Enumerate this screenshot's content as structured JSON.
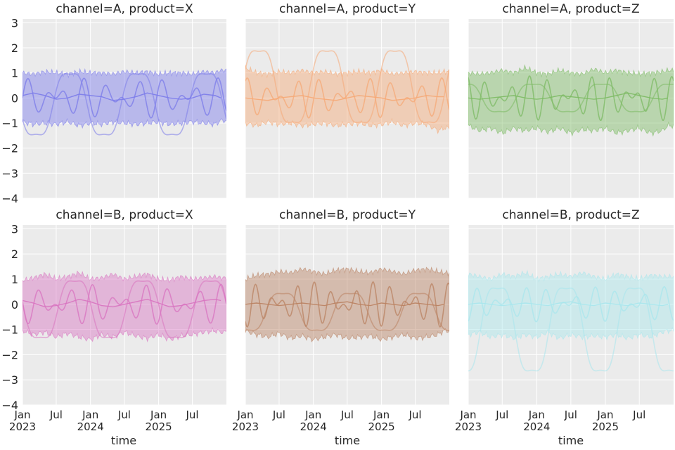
{
  "figure": {
    "xlabel": "time",
    "x_ticks": [
      {
        "date": "2023-01-01",
        "line1": "Jan",
        "line2": "2023"
      },
      {
        "date": "2023-07-01",
        "line1": "Jul",
        "line2": ""
      },
      {
        "date": "2024-01-01",
        "line1": "Jan",
        "line2": "2024"
      },
      {
        "date": "2024-07-01",
        "line1": "Jul",
        "line2": ""
      },
      {
        "date": "2025-01-01",
        "line1": "Jan",
        "line2": "2025"
      },
      {
        "date": "2025-07-01",
        "line1": "Jul",
        "line2": ""
      }
    ],
    "y_ticks": [
      3,
      2,
      1,
      0,
      -1,
      -2,
      -3,
      -4
    ],
    "x_range": [
      "2023-01-01",
      "2025-12-31"
    ],
    "y_range": [
      -4,
      3.15
    ],
    "grid": true,
    "background": "#ebebeb"
  },
  "chart_data": [
    {
      "type": "area",
      "title": "channel=A, product=X",
      "color": "#7b7bea",
      "x": [
        "2023-01",
        "2023-03",
        "2023-05",
        "2023-07",
        "2023-09",
        "2023-11",
        "2024-01",
        "2024-03",
        "2024-05",
        "2024-07",
        "2024-09",
        "2024-11",
        "2025-01",
        "2025-03",
        "2025-05",
        "2025-07",
        "2025-09",
        "2025-11",
        "2025-12"
      ],
      "mean": [
        0.1,
        0.2,
        0.1,
        -0.05,
        0.0,
        0.15,
        0.1,
        0.05,
        -0.1,
        -0.05,
        0.05,
        0.2,
        0.1,
        0.0,
        -0.05,
        0.0,
        0.15,
        0.1,
        0.0
      ],
      "band_upper": [
        1.0,
        0.95,
        1.05,
        1.0,
        0.95,
        1.05,
        1.0,
        1.0,
        0.95,
        1.05,
        1.0,
        1.05,
        0.95,
        1.0,
        1.0,
        0.95,
        1.05,
        1.0,
        1.1
      ],
      "band_lower": [
        -0.95,
        -1.05,
        -1.0,
        -1.05,
        -0.95,
        -1.1,
        -1.0,
        -1.05,
        -0.95,
        -1.0,
        -1.05,
        -1.0,
        -0.95,
        -1.05,
        -1.0,
        -0.95,
        -1.0,
        -1.05,
        -0.9
      ],
      "seasonal": [
        {
          "amp": 2.0,
          "offset": -0.25,
          "period_days": 365,
          "phase": 0.55
        }
      ],
      "wiggle": {
        "amp": 0.8,
        "period_days": 120
      }
    },
    {
      "type": "area",
      "title": "channel=A, product=Y",
      "color": "#f5a875",
      "x": [
        "2023-01",
        "2023-03",
        "2023-05",
        "2023-07",
        "2023-09",
        "2023-11",
        "2024-01",
        "2024-03",
        "2024-05",
        "2024-07",
        "2024-09",
        "2024-11",
        "2025-01",
        "2025-03",
        "2025-05",
        "2025-07",
        "2025-09",
        "2025-11",
        "2025-12"
      ],
      "mean": [
        0.0,
        -0.05,
        -0.1,
        0.0,
        0.05,
        0.1,
        0.0,
        -0.05,
        -0.1,
        0.0,
        0.1,
        0.05,
        0.0,
        -0.1,
        -0.05,
        0.0,
        0.1,
        0.05,
        0.05
      ],
      "band_upper": [
        1.2,
        1.0,
        0.95,
        1.05,
        1.0,
        1.1,
        1.0,
        1.05,
        0.95,
        1.0,
        1.05,
        1.0,
        1.1,
        0.95,
        1.0,
        1.05,
        1.0,
        1.0,
        1.05
      ],
      "band_lower": [
        -1.0,
        -1.1,
        -0.95,
        -1.05,
        -1.0,
        -1.1,
        -1.05,
        -1.0,
        -1.1,
        -1.05,
        -1.0,
        -1.1,
        -1.05,
        -0.95,
        -1.1,
        -1.0,
        -1.05,
        -1.3,
        -1.2
      ],
      "seasonal": [
        {
          "amp": 2.35,
          "offset": 0.45,
          "period_days": 365,
          "phase": 0.05
        }
      ],
      "wiggle": {
        "amp": 0.8,
        "period_days": 110
      }
    },
    {
      "type": "area",
      "title": "channel=A, product=Z",
      "color": "#7cba63",
      "x": [
        "2023-01",
        "2023-03",
        "2023-05",
        "2023-07",
        "2023-09",
        "2023-11",
        "2024-01",
        "2024-03",
        "2024-05",
        "2024-07",
        "2024-09",
        "2024-11",
        "2025-01",
        "2025-03",
        "2025-05",
        "2025-07",
        "2025-09",
        "2025-11",
        "2025-12"
      ],
      "mean": [
        0.0,
        -0.05,
        0.0,
        0.05,
        0.1,
        0.0,
        -0.05,
        0.0,
        0.1,
        0.05,
        0.0,
        -0.05,
        0.0,
        0.1,
        0.2,
        0.1,
        0.0,
        -0.05,
        0.0
      ],
      "band_upper": [
        1.0,
        0.95,
        1.0,
        1.1,
        1.0,
        1.2,
        1.0,
        0.95,
        1.1,
        1.0,
        0.95,
        1.15,
        1.0,
        1.1,
        1.0,
        0.95,
        1.0,
        1.05,
        1.1
      ],
      "band_lower": [
        -1.1,
        -1.3,
        -1.2,
        -1.4,
        -1.2,
        -1.3,
        -1.2,
        -1.35,
        -1.2,
        -1.4,
        -1.25,
        -1.3,
        -1.2,
        -1.4,
        -1.3,
        -1.2,
        -1.4,
        -1.3,
        -1.1
      ],
      "seasonal": [
        {
          "amp": 0.9,
          "offset": 0.0,
          "period_days": 365,
          "phase": 0.3
        }
      ],
      "wiggle": {
        "amp": 0.9,
        "period_days": 95
      }
    },
    {
      "type": "area",
      "title": "channel=B, product=X",
      "color": "#d873c0",
      "x": [
        "2023-01",
        "2023-03",
        "2023-05",
        "2023-07",
        "2023-09",
        "2023-11",
        "2024-01",
        "2024-03",
        "2024-05",
        "2024-07",
        "2024-09",
        "2024-11",
        "2025-01",
        "2025-03",
        "2025-05",
        "2025-07",
        "2025-09",
        "2025-11",
        "2025-12"
      ],
      "mean": [
        0.15,
        0.05,
        -0.1,
        -0.05,
        0.05,
        0.2,
        0.1,
        -0.05,
        -0.1,
        0.0,
        0.1,
        0.2,
        0.05,
        -0.1,
        -0.05,
        0.05,
        0.15,
        0.2,
        0.15
      ],
      "band_upper": [
        0.95,
        1.05,
        1.2,
        1.0,
        1.1,
        1.25,
        1.0,
        1.05,
        1.2,
        1.0,
        1.1,
        1.2,
        1.0,
        0.95,
        1.1,
        1.0,
        1.05,
        1.1,
        1.05
      ],
      "band_lower": [
        -1.05,
        -1.2,
        -1.1,
        -1.3,
        -1.15,
        -1.3,
        -1.4,
        -1.2,
        -1.3,
        -1.1,
        -1.25,
        -1.35,
        -1.2,
        -1.4,
        -1.25,
        -1.2,
        -1.1,
        -1.05,
        -1.1
      ],
      "seasonal": [
        {
          "amp": 1.85,
          "offset": -0.2,
          "period_days": 365,
          "phase": 0.48
        }
      ],
      "wiggle": {
        "amp": 0.8,
        "period_days": 115
      }
    },
    {
      "type": "area",
      "title": "channel=B, product=Y",
      "color": "#b98161",
      "x": [
        "2023-01",
        "2023-03",
        "2023-05",
        "2023-07",
        "2023-09",
        "2023-11",
        "2024-01",
        "2024-03",
        "2024-05",
        "2024-07",
        "2024-09",
        "2024-11",
        "2025-01",
        "2025-03",
        "2025-05",
        "2025-07",
        "2025-09",
        "2025-11",
        "2025-12"
      ],
      "mean": [
        0.0,
        0.05,
        0.0,
        -0.05,
        0.0,
        0.05,
        0.0,
        -0.05,
        0.05,
        0.1,
        0.0,
        -0.05,
        0.05,
        0.0,
        -0.05,
        0.05,
        0.0,
        -0.05,
        0.0
      ],
      "band_upper": [
        1.0,
        1.15,
        1.2,
        1.3,
        1.25,
        1.4,
        1.3,
        1.2,
        1.35,
        1.4,
        1.3,
        1.25,
        1.4,
        1.3,
        1.2,
        1.35,
        1.4,
        1.3,
        1.25
      ],
      "band_lower": [
        -1.05,
        -1.2,
        -1.3,
        -1.15,
        -1.35,
        -1.25,
        -1.4,
        -1.3,
        -1.2,
        -1.35,
        -1.3,
        -1.25,
        -1.4,
        -1.3,
        -1.2,
        -1.35,
        -1.3,
        -1.2,
        -1.05
      ],
      "seasonal": [
        {
          "amp": 1.2,
          "offset": -0.3,
          "period_days": 365,
          "phase": 0.7
        }
      ],
      "wiggle": {
        "amp": 0.9,
        "period_days": 90
      }
    },
    {
      "type": "area",
      "title": "channel=B, product=Z",
      "color": "#a8e6ec",
      "x": [
        "2023-01",
        "2023-03",
        "2023-05",
        "2023-07",
        "2023-09",
        "2023-11",
        "2024-01",
        "2024-03",
        "2024-05",
        "2024-07",
        "2024-09",
        "2024-11",
        "2025-01",
        "2025-03",
        "2025-05",
        "2025-07",
        "2025-09",
        "2025-11",
        "2025-12"
      ],
      "mean": [
        0.0,
        0.05,
        0.0,
        -0.05,
        0.0,
        0.05,
        0.0,
        -0.05,
        0.05,
        0.1,
        0.0,
        -0.05,
        0.05,
        0.0,
        -0.05,
        0.05,
        0.0,
        -0.05,
        0.0
      ],
      "band_upper": [
        1.2,
        1.1,
        1.0,
        1.2,
        1.1,
        1.25,
        1.0,
        1.1,
        1.2,
        1.1,
        1.25,
        1.1,
        1.0,
        1.2,
        1.1,
        1.0,
        1.15,
        1.1,
        1.1
      ],
      "band_lower": [
        -1.2,
        -1.1,
        -1.3,
        -1.2,
        -1.35,
        -1.2,
        -1.3,
        -1.1,
        -1.35,
        -1.2,
        -1.3,
        -1.25,
        -1.3,
        -1.2,
        -1.35,
        -1.2,
        -1.3,
        -1.1,
        -1.05
      ],
      "seasonal": [
        {
          "amp": 2.7,
          "offset": -1.0,
          "period_days": 365,
          "phase": 0.82
        }
      ],
      "wiggle": {
        "amp": 0.7,
        "period_days": 105
      }
    }
  ]
}
